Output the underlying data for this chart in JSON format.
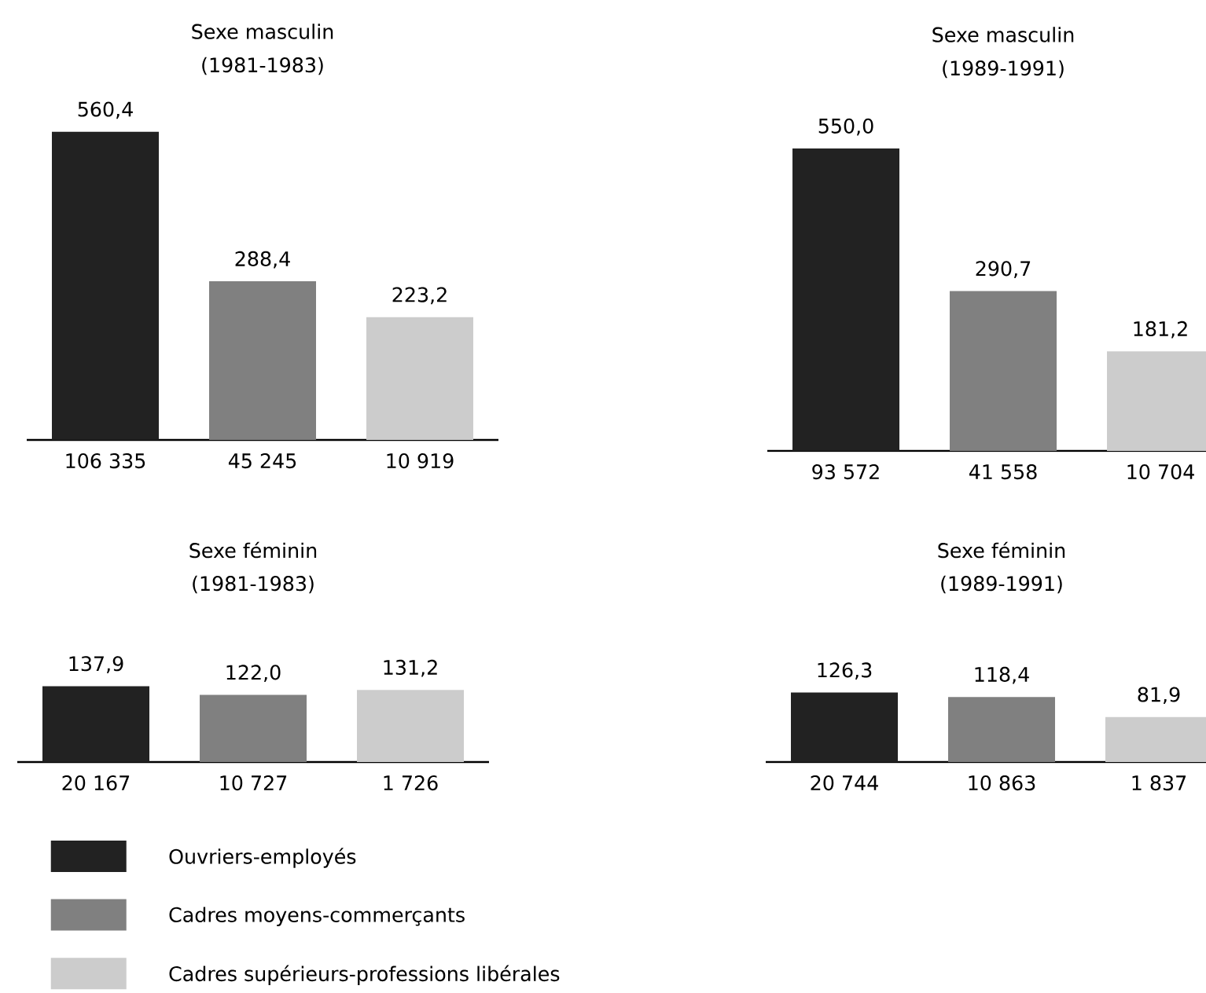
{
  "chart_data": [
    {
      "type": "bar",
      "title": "Sexe masculin",
      "subtitle": "(1981-1983)",
      "categories": [
        "106 335",
        "45 245",
        "10 919"
      ],
      "series": [
        {
          "color": "#222222",
          "values": [
            560.4,
            null,
            null
          ],
          "value_labels": [
            "560,4",
            null,
            null
          ]
        },
        {
          "color": "#808080",
          "values": [
            null,
            288.4,
            null
          ],
          "value_labels": [
            null,
            "288,4",
            null
          ]
        },
        {
          "color": "#cccccc",
          "values": [
            null,
            null,
            223.2
          ],
          "value_labels": [
            null,
            null,
            "223,2"
          ]
        }
      ]
    },
    {
      "type": "bar",
      "title": "Sexe masculin",
      "subtitle": "(1989-1991)",
      "categories": [
        "93 572",
        "41 558",
        "10 704"
      ],
      "series": [
        {
          "color": "#222222",
          "values": [
            550.0,
            null,
            null
          ],
          "value_labels": [
            "550,0",
            null,
            null
          ]
        },
        {
          "color": "#808080",
          "values": [
            null,
            290.7,
            null
          ],
          "value_labels": [
            null,
            "290,7",
            null
          ]
        },
        {
          "color": "#cccccc",
          "values": [
            null,
            null,
            181.2
          ],
          "value_labels": [
            null,
            null,
            "181,2"
          ]
        }
      ]
    },
    {
      "type": "bar",
      "title": "Sexe féminin",
      "subtitle": "(1981-1983)",
      "categories": [
        "20 167",
        "10 727",
        "1 726"
      ],
      "legend": "bottom",
      "series": [
        {
          "name": "Ouvriers-employés",
          "color": "#222222",
          "values": [
            137.9,
            null,
            null
          ],
          "value_labels": [
            "137,9",
            null,
            null
          ]
        },
        {
          "name": "Cadres moyens-commerçants",
          "color": "#808080",
          "values": [
            null,
            122.0,
            null
          ],
          "value_labels": [
            null,
            "122,0",
            null
          ]
        },
        {
          "name": "Cadres supérieurs-professions libérales",
          "color": "#cccccc",
          "values": [
            null,
            null,
            131.2
          ],
          "value_labels": [
            null,
            null,
            "131,2"
          ]
        }
      ]
    },
    {
      "type": "bar",
      "title": "Sexe féminin",
      "subtitle": "(1989-1991)",
      "categories": [
        "20 744",
        "10 863",
        "1 837"
      ],
      "series": [
        {
          "color": "#222222",
          "values": [
            126.3,
            null,
            null
          ],
          "value_labels": [
            "126,3",
            null,
            null
          ]
        },
        {
          "color": "#808080",
          "values": [
            null,
            118.4,
            null
          ],
          "value_labels": [
            null,
            "118,4",
            null
          ]
        },
        {
          "color": "#cccccc",
          "values": [
            null,
            null,
            81.9
          ],
          "value_labels": [
            null,
            null,
            "81,9"
          ]
        }
      ]
    }
  ]
}
